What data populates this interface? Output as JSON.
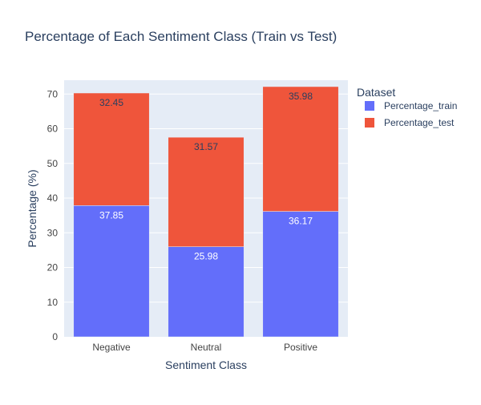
{
  "chart_data": {
    "type": "bar",
    "stacked": true,
    "title": "Percentage of Each Sentiment Class (Train vs Test)",
    "xlabel": "Sentiment Class",
    "ylabel": "Percentage (%)",
    "categories": [
      "Negative",
      "Neutral",
      "Positive"
    ],
    "ylim": [
      0,
      74
    ],
    "yticks": [
      0,
      10,
      20,
      30,
      40,
      50,
      60,
      70
    ],
    "grid": true,
    "legend": {
      "title": "Dataset",
      "placement": "right"
    },
    "series": [
      {
        "name": "Percentage_train",
        "color": "#636efa",
        "label_color": "#ffffff",
        "values": [
          37.85,
          25.98,
          36.17
        ],
        "labels": [
          "37.85",
          "25.98",
          "36.17"
        ]
      },
      {
        "name": "Percentage_test",
        "color": "#ef553b",
        "label_color": "#2a3f5f",
        "values": [
          32.45,
          31.57,
          35.98
        ],
        "labels": [
          "32.45",
          "31.57",
          "35.98"
        ]
      }
    ],
    "colors": {
      "plot_bg": "#e5ecf6",
      "grid": "#ffffff",
      "text": "#2a3f5f",
      "tick_text": "#444444"
    }
  }
}
